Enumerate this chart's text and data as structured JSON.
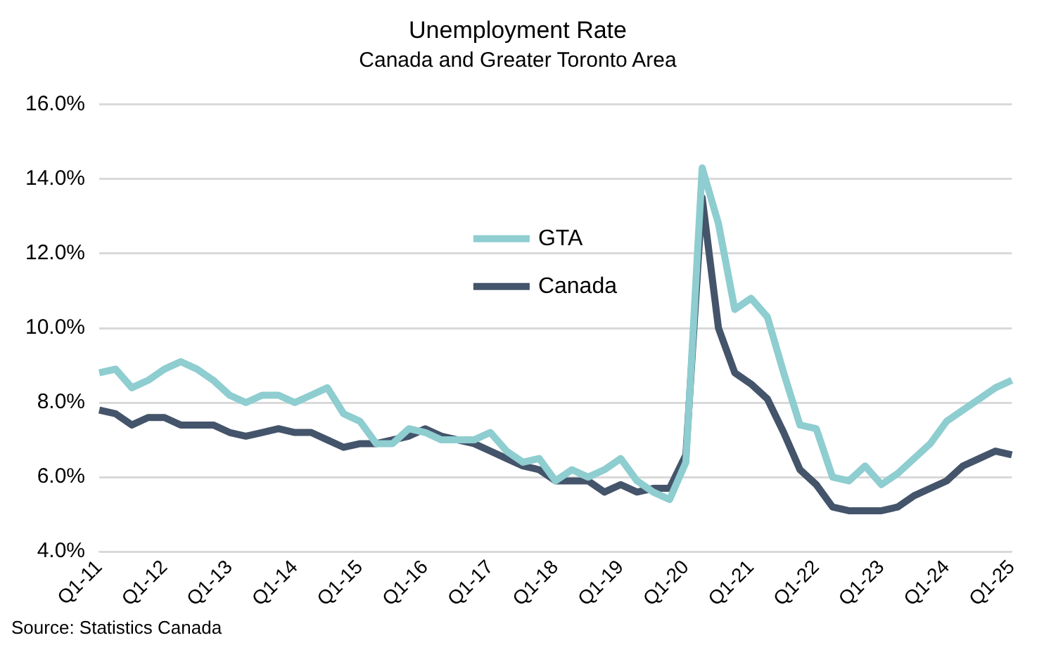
{
  "chart_data": {
    "type": "line",
    "title": "Unemployment Rate",
    "subtitle": "Canada and Greater Toronto Area",
    "categories": [
      "Q1-11",
      null,
      null,
      null,
      "Q1-12",
      null,
      null,
      null,
      "Q1-13",
      null,
      null,
      null,
      "Q1-14",
      null,
      null,
      null,
      "Q1-15",
      null,
      null,
      null,
      "Q1-16",
      null,
      null,
      null,
      "Q1-17",
      null,
      null,
      null,
      "Q1-18",
      null,
      null,
      null,
      "Q1-19",
      null,
      null,
      null,
      "Q1-20",
      null,
      null,
      null,
      "Q1-21",
      null,
      null,
      null,
      "Q1-22",
      null,
      null,
      null,
      "Q1-23",
      null,
      null,
      null,
      "Q1-24",
      null,
      null,
      null,
      "Q1-25"
    ],
    "series": [
      {
        "name": "GTA",
        "color": "#8ecdd0",
        "values": [
          8.8,
          8.9,
          8.4,
          8.6,
          8.9,
          9.1,
          8.9,
          8.6,
          8.2,
          8.0,
          8.2,
          8.2,
          8.0,
          8.2,
          8.4,
          7.7,
          7.5,
          6.9,
          6.9,
          7.3,
          7.2,
          7.0,
          7.0,
          7.0,
          7.2,
          6.7,
          6.4,
          6.5,
          5.9,
          6.2,
          6.0,
          6.2,
          6.5,
          5.9,
          5.6,
          5.4,
          6.4,
          14.3,
          12.8,
          10.5,
          10.8,
          10.3,
          8.8,
          7.4,
          7.3,
          6.0,
          5.9,
          6.3,
          5.8,
          6.1,
          6.5,
          6.9,
          7.5,
          7.8,
          8.1,
          8.4,
          8.6
        ]
      },
      {
        "name": "Canada",
        "color": "#44546a",
        "values": [
          7.8,
          7.7,
          7.4,
          7.6,
          7.6,
          7.4,
          7.4,
          7.4,
          7.2,
          7.1,
          7.2,
          7.3,
          7.2,
          7.2,
          7.0,
          6.8,
          6.9,
          6.9,
          7.0,
          7.1,
          7.3,
          7.1,
          7.0,
          6.9,
          6.7,
          6.5,
          6.3,
          6.2,
          5.9,
          5.9,
          5.9,
          5.6,
          5.8,
          5.6,
          5.7,
          5.7,
          6.6,
          13.5,
          10.0,
          8.8,
          8.5,
          8.1,
          7.2,
          6.2,
          5.8,
          5.2,
          5.1,
          5.1,
          5.1,
          5.2,
          5.5,
          5.7,
          5.9,
          6.3,
          6.5,
          6.7,
          6.6
        ]
      }
    ],
    "ylim": [
      4,
      16
    ],
    "yticks": [
      {
        "value": 4,
        "label": "4.0%"
      },
      {
        "value": 6,
        "label": "6.0%"
      },
      {
        "value": 8,
        "label": "8.0%"
      },
      {
        "value": 10,
        "label": "10.0%"
      },
      {
        "value": 12,
        "label": "12.0%"
      },
      {
        "value": 14,
        "label": "14.0%"
      },
      {
        "value": 16,
        "label": "16.0%"
      }
    ],
    "grid": "y",
    "legend": "top",
    "marker": "none",
    "line_style": "solid",
    "annotations": [
      "Source: Statistics Canada"
    ]
  }
}
